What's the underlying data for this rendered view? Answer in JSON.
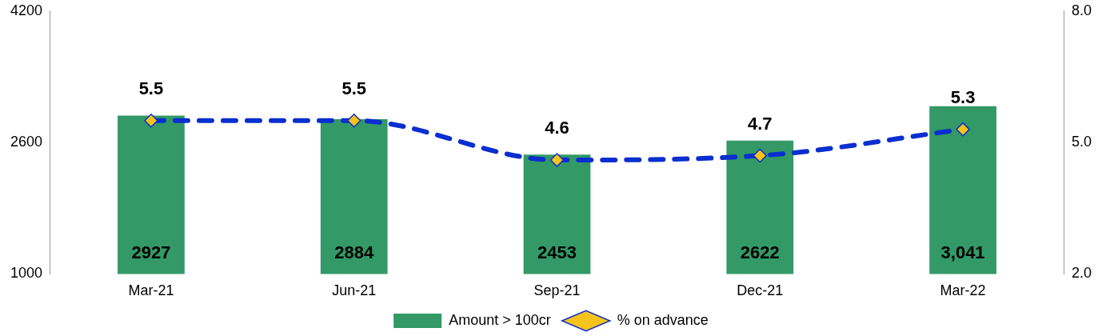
{
  "chart_data": {
    "type": "bar",
    "categories": [
      "Mar-21",
      "Jun-21",
      "Sep-21",
      "Dec-21",
      "Mar-22"
    ],
    "series": [
      {
        "name": "Amount > 100cr",
        "color": "#339966",
        "values": [
          2927,
          2884,
          2453,
          2622,
          3041
        ],
        "value_labels": [
          "2927",
          "2884",
          "2453",
          "2622",
          "3,041"
        ]
      },
      {
        "name": "% on advance",
        "type": "line",
        "axis": "y2",
        "color": "#0a2ecf",
        "values": [
          5.5,
          5.5,
          4.6,
          4.7,
          5.3
        ],
        "value_labels": [
          "5.5",
          "5.5",
          "4.6",
          "4.7",
          "5.3"
        ]
      }
    ],
    "ylim": [
      1000,
      4200
    ],
    "yticks": [
      1000,
      2600,
      4200
    ],
    "y2lim": [
      2.0,
      8.0
    ],
    "y2ticks": [
      {
        "value": 2,
        "label": "2.0"
      },
      {
        "value": 5,
        "label": "5.0"
      },
      {
        "value": 8,
        "label": "8.0"
      }
    ],
    "grid": false,
    "legend": "bottom",
    "marker": "diamond",
    "line_style": "dashed"
  }
}
